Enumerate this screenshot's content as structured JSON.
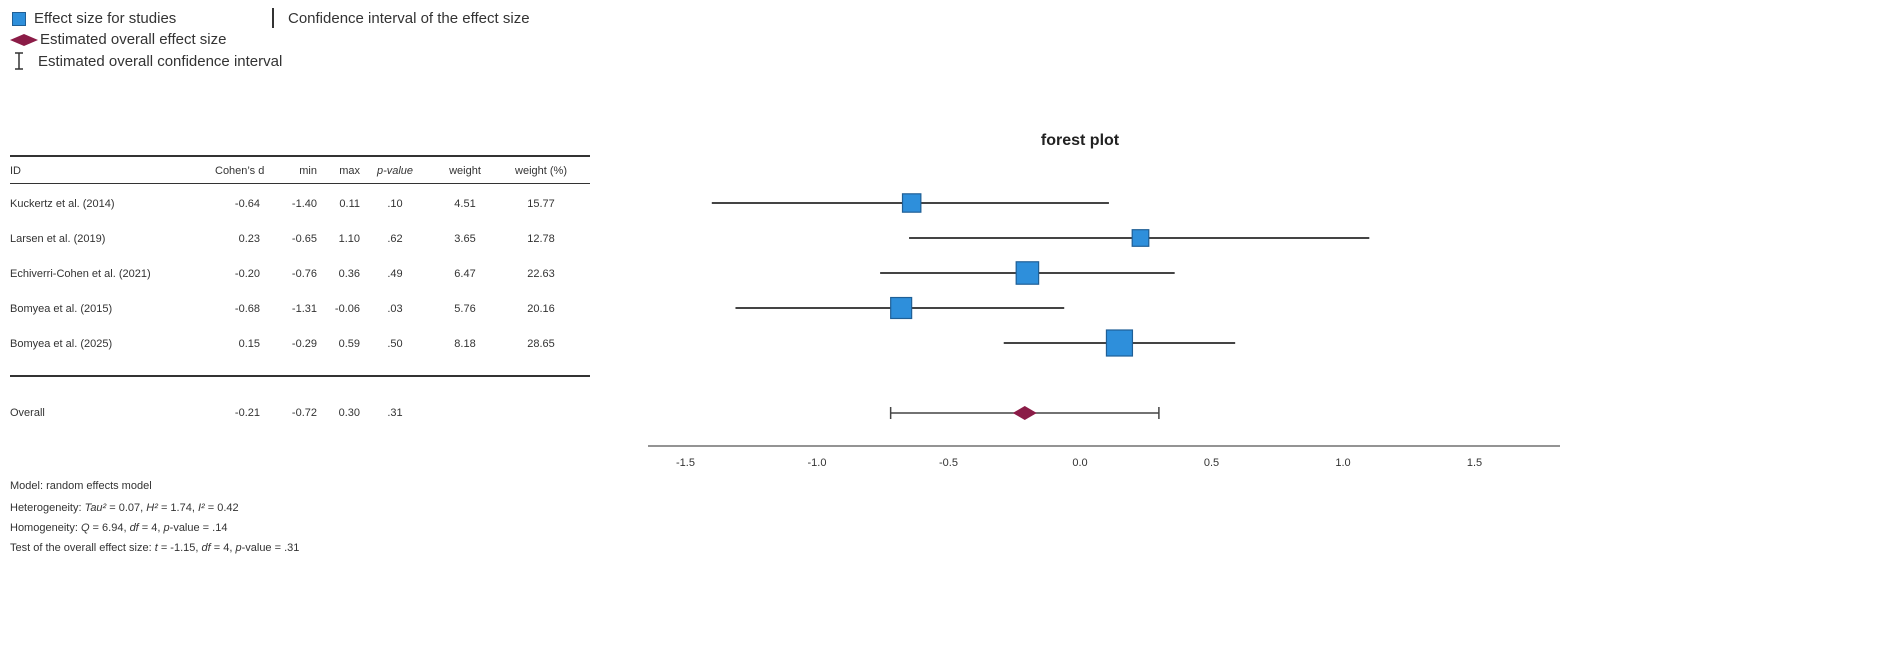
{
  "legend": {
    "study_effect": "Effect size for studies",
    "overall_effect": "Estimated overall effect size",
    "overall_ci": "Estimated overall confidence interval",
    "ci": "Confidence interval of the effect size"
  },
  "table": {
    "headers": [
      "ID",
      "Cohen’s d",
      "min",
      "max",
      "p-value",
      "weight",
      "weight (%)"
    ],
    "rows": [
      [
        "Kuckertz et al. (2014)",
        "-0.64",
        "-1.40",
        "0.11",
        ".10",
        "4.51",
        "15.77"
      ],
      [
        "Larsen et al. (2019)",
        "0.23",
        "-0.65",
        "1.10",
        ".62",
        "3.65",
        "12.78"
      ],
      [
        "Echiverri-Cohen et al. (2021)",
        "-0.20",
        "-0.76",
        "0.36",
        ".49",
        "6.47",
        "22.63"
      ],
      [
        "Bomyea et al. (2015)",
        "-0.68",
        "-1.31",
        "-0.06",
        ".03",
        "5.76",
        "20.16"
      ],
      [
        "Bomyea et al. (2025)",
        "0.15",
        "-0.29",
        "0.59",
        ".50",
        "8.18",
        "28.65"
      ]
    ],
    "overall": [
      "Overall",
      "-0.21",
      "-0.72",
      "0.30",
      ".31"
    ]
  },
  "notes": {
    "model": "Model: random effects model",
    "heterogeneity": {
      "prefix": "Heterogeneity: ",
      "tau_label": "Tau²",
      "tau_value": " = 0.07, ",
      "h_label": "H²",
      "h_value": " = 1.74, ",
      "i_label": "I²",
      "i_value": " = 0.42"
    },
    "homogeneity": {
      "prefix": "Homogeneity: ",
      "q_label": "Q",
      "q_value": " = 6.94, ",
      "df_label": "df",
      "df_value": " = 4, ",
      "p_label": "p",
      "p_value": "-value = .14"
    },
    "test": {
      "prefix": "Test of the overall effect size: ",
      "t_label": "t",
      "t_value": " = -1.15, ",
      "df_label": "df",
      "df_value": " = 4, ",
      "p_label": "p",
      "p_value": "-value = .31"
    }
  },
  "chart_data": {
    "type": "forest",
    "title": "forest plot",
    "xlim": [
      -1.65,
      1.85
    ],
    "xticks": [
      -1.5,
      -1.0,
      -0.5,
      0.0,
      0.5,
      1.0,
      1.5
    ],
    "xtick_labels": [
      "-1.5",
      "-1.0",
      "-0.5",
      "0.0",
      "0.5",
      "1.0",
      "1.5"
    ],
    "studies": [
      {
        "name": "Kuckertz et al. (2014)",
        "d": -0.64,
        "min": -1.4,
        "max": 0.11,
        "weight_pct": 15.77
      },
      {
        "name": "Larsen et al. (2019)",
        "d": 0.23,
        "min": -0.65,
        "max": 1.1,
        "weight_pct": 12.78
      },
      {
        "name": "Echiverri-Cohen et al. (2021)",
        "d": -0.2,
        "min": -0.76,
        "max": 0.36,
        "weight_pct": 22.63
      },
      {
        "name": "Bomyea et al. (2015)",
        "d": -0.68,
        "min": -1.31,
        "max": -0.06,
        "weight_pct": 20.16
      },
      {
        "name": "Bomyea et al. (2025)",
        "d": 0.15,
        "min": -0.29,
        "max": 0.59,
        "weight_pct": 28.65
      }
    ],
    "overall": {
      "d": -0.21,
      "min": -0.72,
      "max": 0.3
    },
    "colors": {
      "study": "#2e8fdb",
      "study_border": "#1f5f96",
      "overall": "#8b1c47",
      "line": "#444444"
    }
  }
}
